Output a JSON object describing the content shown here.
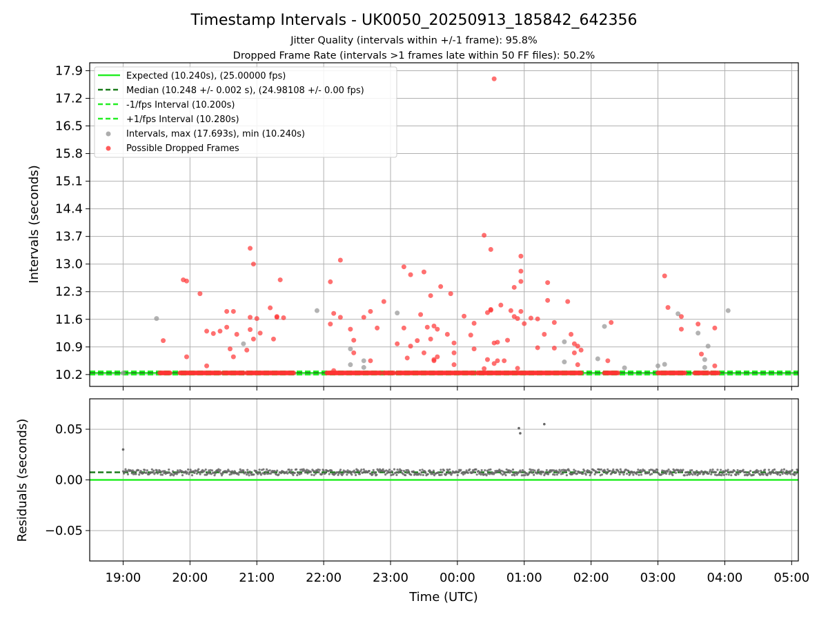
{
  "chart_data": [
    {
      "type": "scatter",
      "title": "Timestamp Intervals - UK0050_20250913_185842_642356",
      "subtitles": [
        "Jitter Quality (intervals within +/-1 frame): 95.8%",
        "Dropped Frame Rate (intervals >1 frames late within 50 FF files): 50.2%"
      ],
      "xlabel": "",
      "ylabel": "Intervals (seconds)",
      "xlim_hours": [
        18.5,
        29.1
      ],
      "ylim": [
        9.9,
        18.1
      ],
      "yticks": [
        "10.2",
        "10.9",
        "11.6",
        "12.3",
        "13.0",
        "13.7",
        "14.4",
        "15.1",
        "15.8",
        "16.5",
        "17.2",
        "17.9"
      ],
      "grid": true,
      "legend_position": "upper-left",
      "reference_lines": [
        {
          "label": "Expected (10.240s), (25.00000 fps)",
          "y": 10.24,
          "style": "solid",
          "color": "#22ee22"
        },
        {
          "label": "Median (10.248 +/- 0.002 s), (24.98108 +/- 0.00 fps)",
          "y": 10.248,
          "style": "dashed",
          "color": "#1a7a1a"
        },
        {
          "label": "-1/fps Interval (10.200s)",
          "y": 10.2,
          "style": "dashed",
          "color": "#22ee22"
        },
        {
          "label": "+1/fps Interval (10.280s)",
          "y": 10.28,
          "style": "dashed",
          "color": "#22ee22"
        }
      ],
      "series": [
        {
          "name": "Intervals, max (17.693s), min (10.240s)",
          "color": "#999999",
          "points": [
            [
              19.0,
              10.24
            ],
            [
              19.5,
              11.62
            ],
            [
              20.8,
              10.98
            ],
            [
              21.9,
              11.82
            ],
            [
              22.4,
              10.85
            ],
            [
              22.4,
              10.45
            ],
            [
              22.6,
              10.55
            ],
            [
              22.6,
              10.38
            ],
            [
              23.1,
              11.76
            ],
            [
              25.6,
              11.03
            ],
            [
              25.6,
              10.52
            ],
            [
              26.1,
              10.6
            ],
            [
              26.2,
              11.42
            ],
            [
              26.5,
              10.37
            ],
            [
              27.0,
              10.42
            ],
            [
              27.1,
              10.46
            ],
            [
              27.3,
              11.74
            ],
            [
              27.6,
              11.25
            ],
            [
              27.7,
              10.58
            ],
            [
              27.7,
              10.38
            ],
            [
              27.75,
              10.92
            ],
            [
              28.05,
              11.82
            ]
          ]
        },
        {
          "name": "Possible Dropped Frames",
          "color": "#ff3333",
          "points": [
            [
              19.6,
              11.06
            ],
            [
              19.9,
              12.6
            ],
            [
              19.95,
              10.65
            ],
            [
              19.95,
              12.57
            ],
            [
              20.15,
              12.25
            ],
            [
              20.25,
              10.42
            ],
            [
              20.25,
              11.3
            ],
            [
              20.35,
              11.24
            ],
            [
              20.45,
              11.3
            ],
            [
              20.55,
              11.4
            ],
            [
              20.55,
              11.8
            ],
            [
              20.6,
              10.85
            ],
            [
              20.65,
              11.8
            ],
            [
              20.65,
              10.65
            ],
            [
              20.7,
              11.22
            ],
            [
              20.85,
              10.82
            ],
            [
              20.9,
              11.65
            ],
            [
              20.9,
              11.34
            ],
            [
              20.9,
              13.4
            ],
            [
              20.95,
              13.0
            ],
            [
              20.95,
              11.1
            ],
            [
              21.0,
              11.62
            ],
            [
              21.05,
              11.25
            ],
            [
              21.2,
              11.89
            ],
            [
              21.25,
              11.1
            ],
            [
              21.3,
              11.67
            ],
            [
              21.3,
              11.65
            ],
            [
              21.4,
              11.64
            ],
            [
              21.35,
              12.6
            ],
            [
              22.1,
              12.55
            ],
            [
              22.1,
              11.48
            ],
            [
              22.15,
              11.75
            ],
            [
              22.15,
              10.3
            ],
            [
              22.25,
              11.65
            ],
            [
              22.25,
              13.1
            ],
            [
              22.4,
              11.35
            ],
            [
              22.45,
              11.07
            ],
            [
              22.45,
              10.75
            ],
            [
              22.6,
              11.65
            ],
            [
              22.7,
              11.8
            ],
            [
              22.7,
              10.55
            ],
            [
              22.8,
              11.38
            ],
            [
              22.9,
              12.05
            ],
            [
              23.1,
              10.98
            ],
            [
              23.2,
              12.93
            ],
            [
              23.2,
              11.38
            ],
            [
              23.25,
              10.62
            ],
            [
              23.3,
              12.73
            ],
            [
              23.3,
              10.92
            ],
            [
              23.4,
              11.06
            ],
            [
              23.45,
              11.72
            ],
            [
              23.5,
              10.75
            ],
            [
              23.5,
              12.8
            ],
            [
              23.55,
              11.4
            ],
            [
              23.6,
              11.1
            ],
            [
              23.6,
              12.2
            ],
            [
              23.65,
              10.58
            ],
            [
              23.65,
              10.55
            ],
            [
              23.65,
              11.43
            ],
            [
              23.7,
              11.35
            ],
            [
              23.7,
              10.65
            ],
            [
              23.75,
              12.43
            ],
            [
              23.85,
              11.22
            ],
            [
              23.9,
              12.25
            ],
            [
              23.95,
              11.0
            ],
            [
              23.95,
              10.75
            ],
            [
              23.95,
              10.45
            ],
            [
              24.1,
              11.68
            ],
            [
              24.2,
              11.2
            ],
            [
              24.25,
              10.85
            ],
            [
              24.25,
              11.5
            ],
            [
              24.4,
              13.73
            ],
            [
              24.4,
              10.35
            ],
            [
              24.45,
              11.77
            ],
            [
              24.45,
              10.58
            ],
            [
              24.5,
              11.83
            ],
            [
              24.5,
              13.37
            ],
            [
              24.5,
              11.85
            ],
            [
              24.55,
              11.0
            ],
            [
              24.55,
              10.48
            ],
            [
              24.6,
              10.55
            ],
            [
              24.6,
              11.02
            ],
            [
              24.65,
              11.96
            ],
            [
              24.7,
              10.55
            ],
            [
              24.75,
              11.07
            ],
            [
              24.8,
              11.82
            ],
            [
              24.85,
              12.41
            ],
            [
              24.85,
              11.67
            ],
            [
              24.9,
              11.62
            ],
            [
              24.9,
              10.36
            ],
            [
              24.95,
              11.8
            ],
            [
              24.95,
              12.82
            ],
            [
              24.95,
              12.56
            ],
            [
              24.95,
              13.2
            ],
            [
              25.0,
              11.49
            ],
            [
              25.1,
              11.63
            ],
            [
              25.2,
              10.88
            ],
            [
              25.2,
              11.61
            ],
            [
              25.3,
              11.22
            ],
            [
              25.35,
              12.53
            ],
            [
              25.35,
              12.08
            ],
            [
              25.45,
              11.52
            ],
            [
              25.45,
              10.87
            ],
            [
              25.65,
              12.05
            ],
            [
              25.7,
              11.22
            ],
            [
              25.75,
              10.98
            ],
            [
              25.75,
              10.75
            ],
            [
              25.8,
              10.92
            ],
            [
              25.8,
              10.45
            ],
            [
              25.85,
              10.82
            ],
            [
              26.25,
              10.55
            ],
            [
              26.3,
              11.52
            ],
            [
              27.1,
              12.7
            ],
            [
              27.15,
              11.9
            ],
            [
              27.35,
              11.35
            ],
            [
              27.35,
              11.67
            ],
            [
              27.6,
              11.48
            ],
            [
              27.65,
              10.72
            ],
            [
              27.85,
              11.38
            ],
            [
              27.85,
              10.42
            ],
            [
              24.55,
              17.693
            ]
          ],
          "dense_band": {
            "y": 10.24,
            "x_ranges": [
              [
                19.55,
                19.7
              ],
              [
                19.85,
                20.45
              ],
              [
                20.5,
                20.8
              ],
              [
                20.85,
                21.55
              ],
              [
                22.05,
                22.85
              ],
              [
                22.9,
                23.05
              ],
              [
                23.1,
                24.25
              ],
              [
                24.3,
                25.85
              ],
              [
                26.2,
                26.4
              ],
              [
                27.0,
                27.4
              ],
              [
                27.55,
                27.75
              ],
              [
                27.8,
                27.9
              ]
            ]
          }
        }
      ]
    },
    {
      "type": "scatter",
      "title": "",
      "xlabel": "Time (UTC)",
      "ylabel": "Residuals (seconds)",
      "xlim_hours": [
        18.5,
        29.1
      ],
      "ylim": [
        -0.08,
        0.08
      ],
      "yticks": [
        "−0.05",
        "0.00",
        "0.05"
      ],
      "xticks": [
        "19:00",
        "20:00",
        "21:00",
        "22:00",
        "23:00",
        "00:00",
        "01:00",
        "02:00",
        "03:00",
        "04:00",
        "05:00"
      ],
      "grid": true,
      "reference_lines": [
        {
          "y": 0.0,
          "style": "solid",
          "color": "#22ee22"
        },
        {
          "y": 0.0075,
          "style": "dashed",
          "color": "#1a7a1a"
        }
      ],
      "series": [
        {
          "color": "#666666",
          "outliers": [
            [
              19.0,
              0.03
            ],
            [
              24.92,
              0.051
            ],
            [
              24.94,
              0.046
            ],
            [
              25.3,
              0.055
            ]
          ],
          "band": {
            "x_range": [
              19.0,
              29.1
            ],
            "center": 0.0075,
            "spread": 0.003
          }
        }
      ]
    }
  ]
}
